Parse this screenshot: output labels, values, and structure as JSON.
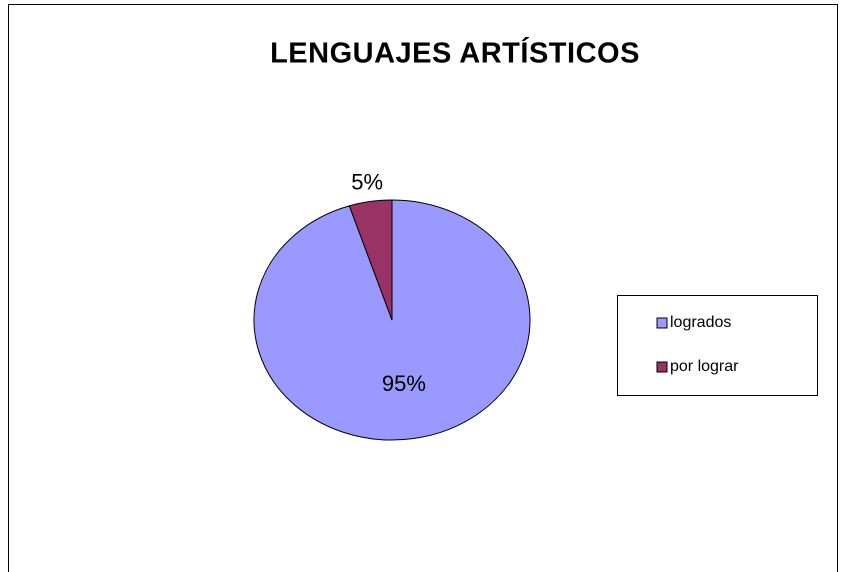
{
  "chart_data": {
    "type": "pie",
    "title": "LENGUAJES ARTÍSTICOS",
    "categories": [
      "logrados",
      "por lograr"
    ],
    "values": [
      95,
      5
    ],
    "value_labels": [
      "95%",
      "5%"
    ],
    "colors": [
      "#9999ff",
      "#993366"
    ],
    "legend": "right"
  }
}
